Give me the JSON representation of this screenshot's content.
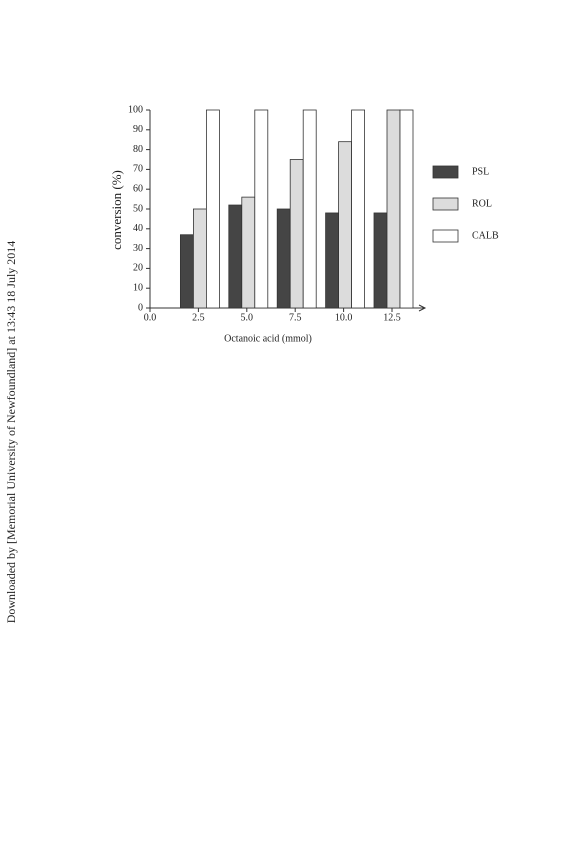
{
  "side_note": "Downloaded by [Memorial University of Newfoundland] at 13:43 18 July 2014",
  "chart_data": {
    "type": "bar",
    "x_label": "Octanoic acid (mmol)",
    "y_label": "conversion (%)",
    "categories": [
      "0.0",
      "2.5",
      "5.0",
      "7.5",
      "10.0",
      "12.5"
    ],
    "series": [
      {
        "name": "PSL",
        "color": "#454545",
        "values": [
          null,
          37,
          52,
          50,
          48,
          48
        ]
      },
      {
        "name": "ROL",
        "color": "#dcdcdc",
        "values": [
          null,
          50,
          56,
          75,
          84,
          100
        ]
      },
      {
        "name": "CALB",
        "color": "#ffffff",
        "values": [
          null,
          100,
          100,
          100,
          100,
          100
        ]
      }
    ],
    "ylim": [
      0,
      100
    ],
    "yticks": [
      0,
      10,
      20,
      30,
      40,
      50,
      60,
      70,
      80,
      90,
      100
    ],
    "legend": "right"
  }
}
